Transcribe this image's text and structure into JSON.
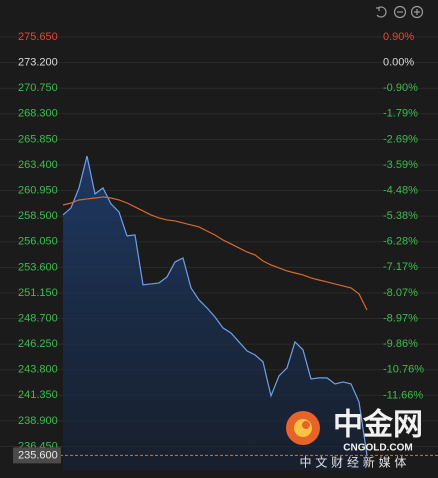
{
  "chart_data": {
    "type": "line",
    "series": [
      {
        "color": "#6f9fe8",
        "fill": "#1e3a66",
        "values": [
          258.62,
          259.29,
          261.2,
          264.26,
          260.63,
          261.2,
          259.67,
          258.9,
          256.61,
          256.7,
          251.92,
          252.01,
          252.11,
          252.68,
          254.12,
          254.5,
          251.63,
          250.48,
          249.72,
          248.85,
          247.8,
          247.32,
          246.46,
          245.6,
          245.22,
          244.55,
          241.29,
          243.21,
          243.97,
          246.46,
          245.7,
          242.92,
          243.02,
          243.02,
          242.44,
          242.63,
          242.44,
          240.72,
          235.6
        ]
      },
      {
        "color": "#d9692a",
        "values": [
          259.57,
          259.76,
          260.05,
          260.15,
          260.24,
          260.34,
          260.24,
          260.05,
          259.76,
          259.38,
          259.0,
          258.62,
          258.33,
          258.14,
          258.04,
          257.85,
          257.66,
          257.47,
          257.08,
          256.7,
          256.22,
          255.84,
          255.46,
          255.07,
          254.79,
          254.21,
          253.83,
          253.54,
          253.26,
          253.06,
          252.87,
          252.59,
          252.39,
          252.2,
          252.01,
          251.82,
          251.63,
          251.06,
          249.52
        ]
      }
    ],
    "ylim": [
      234.2,
      276.8
    ],
    "yticks": [
      {
        "value": 275.65,
        "label": "275.650"
      },
      {
        "value": 273.2,
        "label": "273.200"
      },
      {
        "value": 270.75,
        "label": "270.750"
      },
      {
        "value": 268.3,
        "label": "268.300"
      },
      {
        "value": 265.85,
        "label": "265.850"
      },
      {
        "value": 263.4,
        "label": "263.400"
      },
      {
        "value": 260.95,
        "label": "260.950"
      },
      {
        "value": 258.5,
        "label": "258.500"
      },
      {
        "value": 256.05,
        "label": "256.050"
      },
      {
        "value": 253.6,
        "label": "253.600"
      },
      {
        "value": 251.15,
        "label": "251.150"
      },
      {
        "value": 248.7,
        "label": "248.700"
      },
      {
        "value": 246.25,
        "label": "246.250"
      },
      {
        "value": 243.8,
        "label": "243.800"
      },
      {
        "value": 241.35,
        "label": "241.350"
      },
      {
        "value": 238.9,
        "label": "238.900"
      },
      {
        "value": 236.45,
        "label": "236.450"
      }
    ],
    "y2lim": [
      -14.275,
      1.318
    ],
    "y2ticks": [
      {
        "value": 0.9,
        "label": "0.90%"
      },
      {
        "value": 0,
        "label": "0.00%"
      },
      {
        "value": -0.9,
        "label": "-0.90%"
      },
      {
        "value": -1.79,
        "label": "-1.79%"
      },
      {
        "value": -2.69,
        "label": "-2.69%"
      },
      {
        "value": -3.59,
        "label": "-3.59%"
      },
      {
        "value": -4.48,
        "label": "-4.48%"
      },
      {
        "value": -5.38,
        "label": "-5.38%"
      },
      {
        "value": -6.28,
        "label": "-6.28%"
      },
      {
        "value": -7.17,
        "label": "-7.17%"
      },
      {
        "value": -8.07,
        "label": "-8.07%"
      },
      {
        "value": -8.97,
        "label": "-8.97%"
      },
      {
        "value": -9.86,
        "label": "-9.86%"
      },
      {
        "value": -10.76,
        "label": "-10.76%"
      },
      {
        "value": -11.66,
        "label": "-11.66%"
      }
    ],
    "up_color": "#e8433a",
    "flat_color": "#d8d8d8",
    "down_color": "#3dbb4e",
    "last_price": {
      "value": 235.6,
      "label": "235.600"
    },
    "grid": true
  },
  "watermark": {
    "brand": "中金网",
    "site": "CNGOLD.COM",
    "slogan": "中 文 财 经 新 媒 体"
  }
}
